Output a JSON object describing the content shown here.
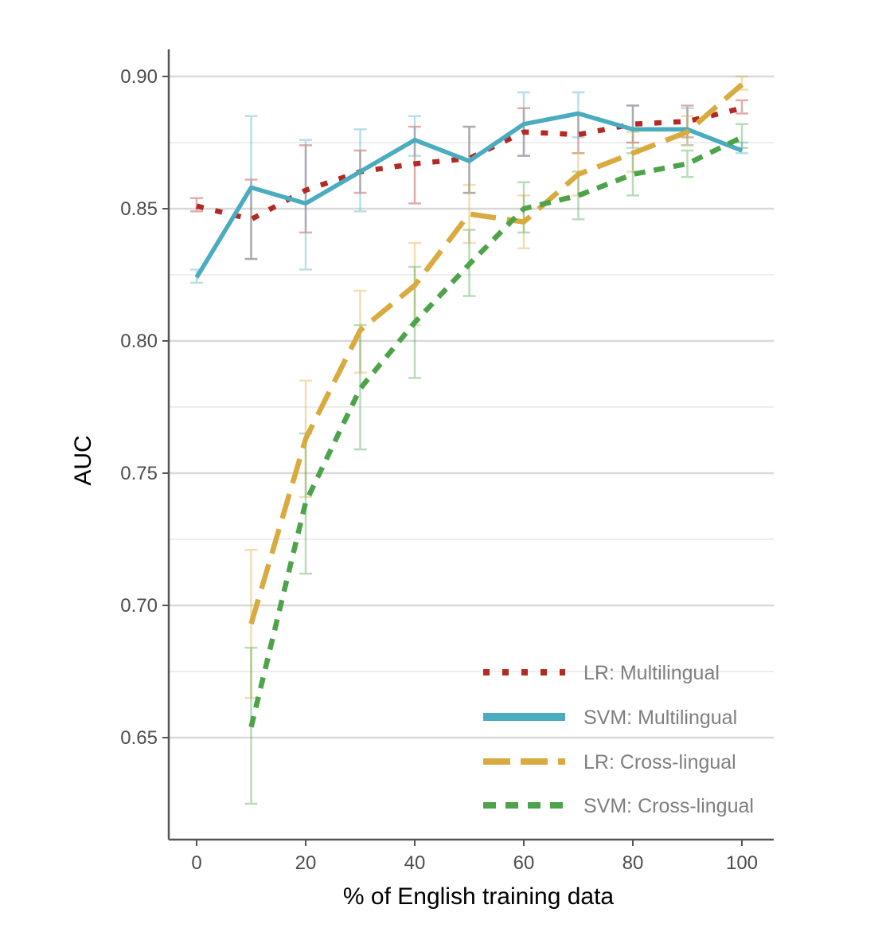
{
  "chart_data": {
    "type": "line",
    "title": "",
    "xlabel": "% of English training data",
    "ylabel": "AUC",
    "xlim": [
      -5,
      105
    ],
    "ylim": [
      0.61,
      0.915
    ],
    "x_ticks": [
      0,
      20,
      40,
      60,
      80,
      100
    ],
    "x_tick_labels": [
      "0",
      "20",
      "40",
      "60",
      "80",
      "100"
    ],
    "y_ticks": [
      0.65,
      0.7,
      0.75,
      0.8,
      0.85,
      0.9
    ],
    "y_tick_labels": [
      "0.65",
      "0.70",
      "0.75",
      "0.80",
      "0.85",
      "0.90"
    ],
    "y_minor_ticks": [
      0.675,
      0.725,
      0.775,
      0.825,
      0.875
    ],
    "grid": true,
    "legend_position": "bottom-right",
    "series": [
      {
        "name": "LR: Multilingual",
        "color": "#b22a23",
        "style": "dotted",
        "x": [
          0,
          10,
          20,
          30,
          40,
          50,
          60,
          70,
          80,
          90,
          100
        ],
        "y": [
          0.851,
          0.846,
          0.857,
          0.864,
          0.867,
          0.869,
          0.879,
          0.878,
          0.882,
          0.883,
          0.888
        ],
        "err_low": [
          0.849,
          0.831,
          0.841,
          0.856,
          0.852,
          0.856,
          0.87,
          0.871,
          0.875,
          0.877,
          0.886
        ],
        "err_high": [
          0.854,
          0.861,
          0.874,
          0.872,
          0.881,
          0.881,
          0.888,
          0.886,
          0.889,
          0.889,
          0.891
        ]
      },
      {
        "name": "SVM: Multilingual",
        "color": "#4aacbf",
        "style": "solid",
        "x": [
          0,
          10,
          20,
          30,
          40,
          50,
          60,
          70,
          80,
          90,
          100
        ],
        "y": [
          0.824,
          0.858,
          0.852,
          0.864,
          0.876,
          0.868,
          0.882,
          0.886,
          0.88,
          0.88,
          0.872
        ],
        "err_low": [
          0.822,
          0.831,
          0.827,
          0.849,
          0.87,
          0.856,
          0.87,
          0.877,
          0.873,
          0.874,
          0.871
        ],
        "err_high": [
          0.827,
          0.885,
          0.876,
          0.88,
          0.885,
          0.881,
          0.894,
          0.894,
          0.889,
          0.888,
          0.875
        ]
      },
      {
        "name": "LR: Cross-lingual",
        "color": "#d9aa3e",
        "style": "dashed",
        "x": [
          10,
          20,
          30,
          40,
          50,
          60,
          70,
          80,
          90,
          100
        ],
        "y": [
          0.693,
          0.763,
          0.804,
          0.821,
          0.848,
          0.845,
          0.863,
          0.871,
          0.879,
          0.897
        ],
        "err_low": [
          0.665,
          0.741,
          0.788,
          0.806,
          0.837,
          0.835,
          0.855,
          0.864,
          0.874,
          0.895
        ],
        "err_high": [
          0.721,
          0.785,
          0.819,
          0.837,
          0.859,
          0.855,
          0.871,
          0.879,
          0.885,
          0.9
        ]
      },
      {
        "name": "SVM: Cross-lingual",
        "color": "#4da34a",
        "style": "dashed-short",
        "x": [
          10,
          20,
          30,
          40,
          50,
          60,
          70,
          80,
          90,
          100
        ],
        "y": [
          0.654,
          0.739,
          0.782,
          0.807,
          0.829,
          0.85,
          0.855,
          0.863,
          0.867,
          0.877
        ],
        "err_low": [
          0.625,
          0.712,
          0.759,
          0.786,
          0.817,
          0.841,
          0.846,
          0.855,
          0.862,
          0.873
        ],
        "err_high": [
          0.684,
          0.765,
          0.806,
          0.828,
          0.842,
          0.86,
          0.864,
          0.871,
          0.872,
          0.882
        ]
      }
    ]
  }
}
